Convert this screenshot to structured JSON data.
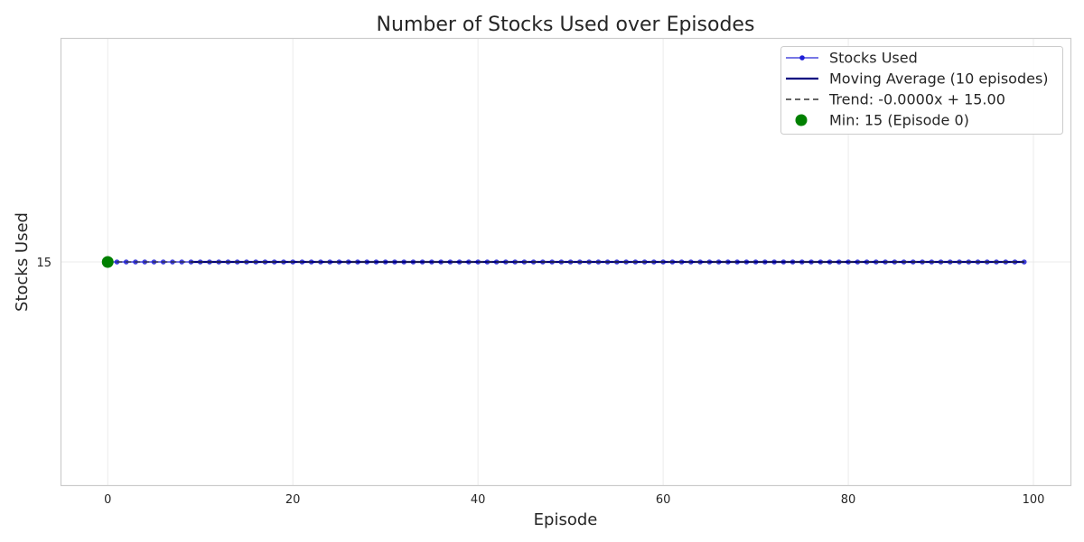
{
  "chart_data": {
    "type": "line",
    "title": "Number of Stocks Used over Episodes",
    "xlabel": "Episode",
    "ylabel": "Stocks Used",
    "xlim": [
      -5,
      104
    ],
    "ylim": [
      14,
      16
    ],
    "xticks": [
      0,
      20,
      40,
      60,
      80,
      100
    ],
    "yticks": [
      15
    ],
    "grid": true,
    "legend_position": "top-right",
    "series": [
      {
        "name": "Stocks Used",
        "kind": "line-markers",
        "color": "#1f1fd6",
        "x_range": [
          0,
          99
        ],
        "constant_value": 15
      },
      {
        "name": "Moving Average (10 episodes)",
        "kind": "line",
        "color": "#000080",
        "x_range": [
          9,
          99
        ],
        "constant_value": 15
      },
      {
        "name": "Trend: -0.0000x + 15.00",
        "kind": "dashed",
        "color": "#333333",
        "slope": -0.0,
        "intercept": 15.0,
        "x_range": [
          0,
          99
        ]
      },
      {
        "name": "Min: 15 (Episode 0)",
        "kind": "point",
        "color": "#008000",
        "x": 0,
        "y": 15
      }
    ]
  }
}
